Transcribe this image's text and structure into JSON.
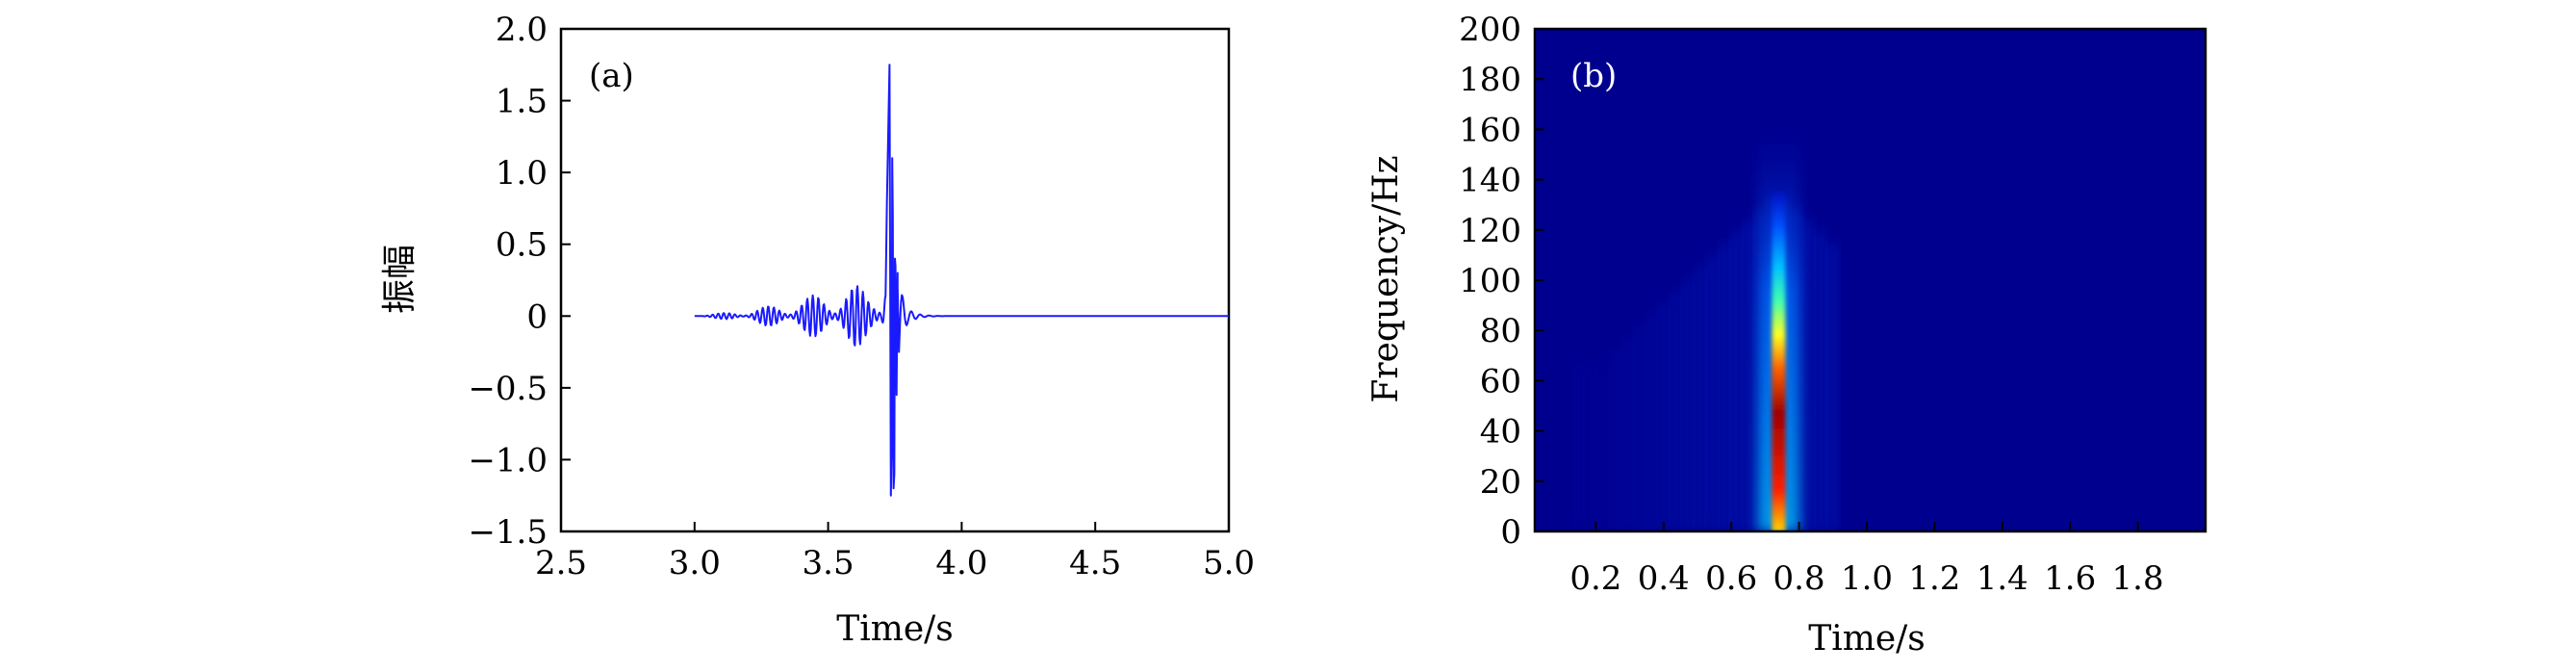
{
  "chart_data": [
    {
      "type": "line",
      "panel_label": "(a)",
      "xlabel": "Time/s",
      "ylabel": "振幅",
      "xlim": [
        2.5,
        5.0
      ],
      "ylim": [
        -1.5,
        2.0
      ],
      "xticks": [
        2.5,
        3.0,
        3.5,
        4.0,
        4.5,
        5.0
      ],
      "xtick_labels": [
        "2.5",
        "3.0",
        "3.5",
        "4.0",
        "4.5",
        "5.0"
      ],
      "yticks": [
        -1.5,
        -1.0,
        -0.5,
        0,
        0.5,
        1.0,
        1.5,
        2.0
      ],
      "ytick_labels": [
        "−1.5",
        "−1.0",
        "−0.5",
        "0",
        "0.5",
        "1.0",
        "1.5",
        "2.0"
      ],
      "grid": false,
      "line_color": "#1a1aff",
      "series": [
        {
          "x": [
            3.0,
            3.1,
            3.2,
            3.3,
            3.4,
            3.5,
            3.55,
            3.6,
            3.65,
            3.7,
            3.72,
            3.73,
            3.735,
            3.74,
            3.745,
            3.75,
            3.76,
            3.78,
            3.8,
            3.85,
            3.9,
            4.0,
            4.5,
            5.0
          ],
          "values": [
            0.0,
            0.02,
            0.04,
            0.08,
            0.12,
            0.18,
            0.2,
            0.22,
            0.18,
            0.25,
            0.8,
            1.75,
            -1.25,
            1.1,
            -1.2,
            0.4,
            0.3,
            0.15,
            0.08,
            0.04,
            0.02,
            0.0,
            0.0,
            0.0
          ]
        }
      ]
    },
    {
      "type": "heatmap",
      "panel_label": "(b)",
      "xlabel": "Time/s",
      "ylabel": "Frequency/Hz",
      "xlim": [
        0.02,
        2.0
      ],
      "ylim": [
        0,
        200
      ],
      "xticks": [
        0.2,
        0.4,
        0.6,
        0.8,
        1.0,
        1.2,
        1.4,
        1.6,
        1.8
      ],
      "xtick_labels": [
        "0.2",
        "0.4",
        "0.6",
        "0.8",
        "1.0",
        "1.2",
        "1.4",
        "1.6",
        "1.8"
      ],
      "yticks": [
        0,
        20,
        40,
        60,
        80,
        100,
        120,
        140,
        160,
        180,
        200
      ],
      "ytick_labels": [
        "0",
        "20",
        "40",
        "60",
        "80",
        "100",
        "120",
        "140",
        "160",
        "180",
        "200"
      ],
      "colormap": "jet",
      "background_color": "#00008f",
      "energy_peak": {
        "time": 0.74,
        "frequency_range": [
          0,
          100
        ]
      },
      "weak_energy_region": {
        "time_range": [
          0.15,
          0.9
        ],
        "frequency_range": [
          0,
          160
        ]
      }
    }
  ],
  "colors": {
    "axis": "#000000",
    "signal": "#1a1aff",
    "panel_label_b": "#ffffff"
  }
}
